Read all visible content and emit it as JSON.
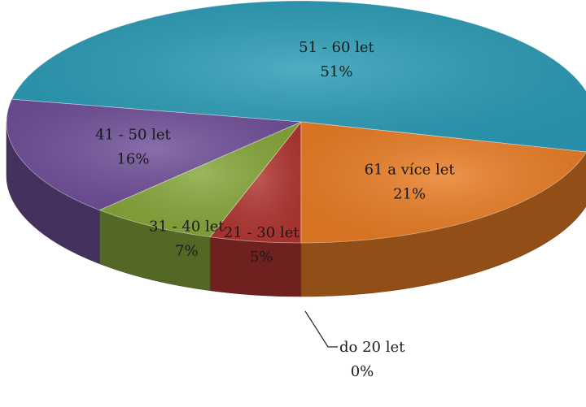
{
  "chart_data": {
    "type": "pie",
    "style": "3d",
    "slices": [
      {
        "label": "do 20 let",
        "percent_text": "0%",
        "value": 0,
        "color": "#b0b0b0"
      },
      {
        "label": "21 - 30 let",
        "percent_text": "5%",
        "value": 5,
        "color": "#b23632"
      },
      {
        "label": "31 - 40 let",
        "percent_text": "7%",
        "value": 7,
        "color": "#86a73a"
      },
      {
        "label": "41 - 50 let",
        "percent_text": "16%",
        "value": 16,
        "color": "#6f4f98"
      },
      {
        "label": "51 - 60 let",
        "percent_text": "51%",
        "value": 51,
        "color": "#2a9bb5"
      },
      {
        "label": "61 a více let",
        "percent_text": "21%",
        "value": 21,
        "color": "#ea7d25"
      }
    ]
  }
}
